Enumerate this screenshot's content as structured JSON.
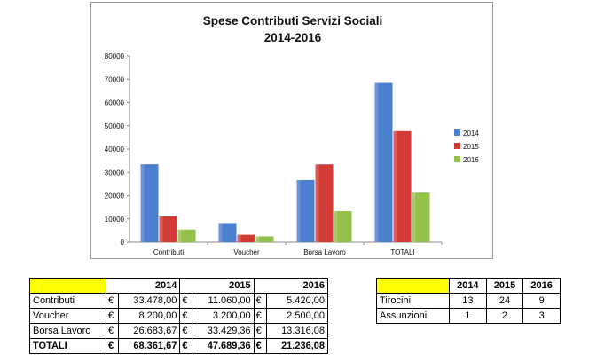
{
  "chart_data": {
    "type": "bar",
    "title": "Spese Contributi Servizi Sociali",
    "subtitle": "2014-2016",
    "categories": [
      "Contributi",
      "Voucher",
      "Borsa Lavoro",
      "TOTALI"
    ],
    "series": [
      {
        "name": "2014",
        "color": "#4a7fd0",
        "values": [
          33478,
          8200,
          26683.67,
          68361.67
        ]
      },
      {
        "name": "2015",
        "color": "#d23a36",
        "values": [
          11060,
          3200,
          33429.36,
          47689.36
        ]
      },
      {
        "name": "2016",
        "color": "#94c147",
        "values": [
          5420,
          2500,
          13316.08,
          21236.08
        ]
      }
    ],
    "ylim": [
      0,
      80000
    ],
    "yticks": [
      "0",
      "10000",
      "20000",
      "30000",
      "40000",
      "50000",
      "60000",
      "70000",
      "80000"
    ],
    "grid": false,
    "legend": "right"
  },
  "spese_table": {
    "header": [
      "",
      "2014",
      "2015",
      "2016"
    ],
    "currency": "€",
    "rows": [
      {
        "label": "Contributi",
        "values": [
          "33.478,00",
          "11.060,00",
          "5.420,00"
        ]
      },
      {
        "label": "Voucher",
        "values": [
          "8.200,00",
          "3.200,00",
          "2.500,00"
        ]
      },
      {
        "label": "Borsa Lavoro",
        "values": [
          "26.683,67",
          "33.429,36",
          "13.316,08"
        ]
      },
      {
        "label": "TOTALI",
        "values": [
          "68.361,67",
          "47.689,36",
          "21.236,08"
        ]
      }
    ]
  },
  "tirocini_table": {
    "header": [
      "",
      "2014",
      "2015",
      "2016"
    ],
    "rows": [
      {
        "label": "Tirocini",
        "values": [
          "13",
          "24",
          "9"
        ]
      },
      {
        "label": "Assunzioni",
        "values": [
          "1",
          "2",
          "3"
        ]
      }
    ]
  },
  "colors": {
    "header_yellow": "#ffff00"
  }
}
